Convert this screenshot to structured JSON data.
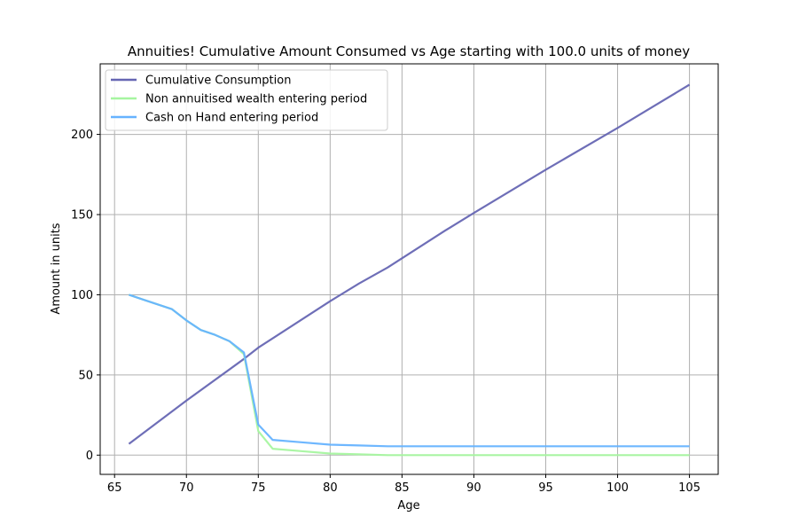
{
  "chart_data": {
    "type": "line",
    "title": "Annuities! Cumulative Amount Consumed vs Age starting with 100.0 units of money",
    "xlabel": "Age",
    "ylabel": "Amount in units",
    "xlim": [
      64,
      107
    ],
    "ylim": [
      -12,
      244
    ],
    "xticks": [
      65,
      70,
      75,
      80,
      85,
      90,
      95,
      100,
      105
    ],
    "yticks": [
      0,
      50,
      100,
      150,
      200
    ],
    "grid": true,
    "legend_position": "top-left",
    "series": [
      {
        "name": "Cumulative Consumption",
        "color": "#6666b3",
        "x": [
          66,
          70,
          74,
          75,
          80,
          82,
          84,
          88,
          90,
          95,
          100,
          105
        ],
        "y": [
          7,
          34,
          60,
          67,
          96,
          107,
          117,
          140,
          151,
          178,
          204,
          231
        ]
      },
      {
        "name": "Non annuitised wealth entering period",
        "color": "#a6f5a0",
        "x": [
          66,
          67,
          68,
          69,
          70,
          71,
          72,
          73,
          74,
          75,
          76,
          78,
          80,
          82,
          84,
          86,
          90,
          95,
          100,
          105
        ],
        "y": [
          100,
          97,
          94,
          91,
          84,
          78,
          75,
          71,
          63,
          15,
          4,
          2.5,
          1,
          0.5,
          0,
          0,
          0,
          0,
          0,
          0
        ]
      },
      {
        "name": "Cash on Hand entering period",
        "color": "#66b3ff",
        "x": [
          66,
          67,
          68,
          69,
          70,
          71,
          72,
          73,
          74,
          75,
          76,
          78,
          80,
          82,
          84,
          86,
          90,
          95,
          100,
          105
        ],
        "y": [
          100,
          97,
          94,
          91,
          84,
          78,
          75,
          71,
          64,
          19,
          9.5,
          8,
          6.5,
          6,
          5.5,
          5.5,
          5.5,
          5.5,
          5.5,
          5.5
        ]
      }
    ]
  }
}
